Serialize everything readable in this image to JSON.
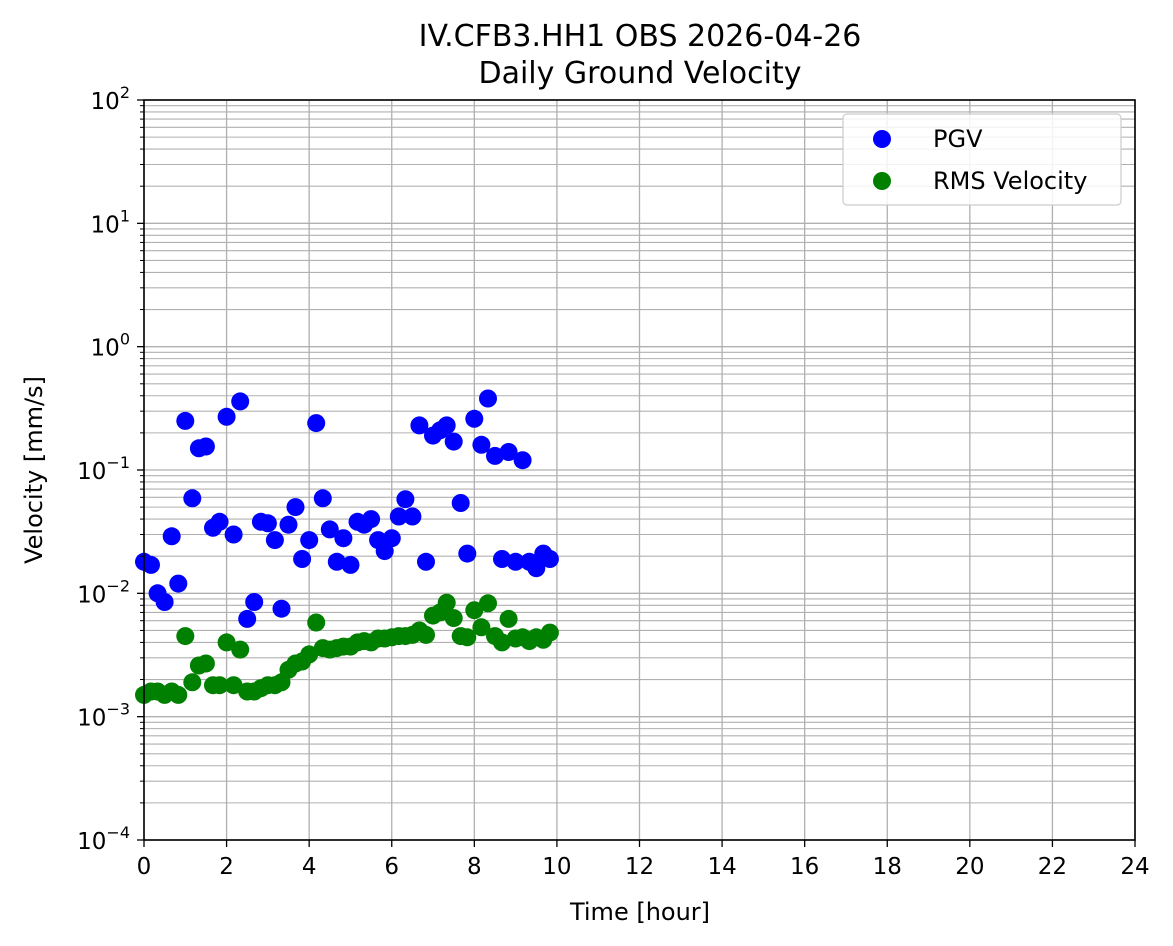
{
  "chart_data": {
    "type": "scatter",
    "title": "IV.CFB3.HH1 OBS 2026-04-26",
    "subtitle": "Daily Ground Velocity",
    "xlabel": "Time [hour]",
    "ylabel": "Velocity [mm/s]",
    "xlim": [
      0,
      24
    ],
    "ylim": [
      0.0001,
      100
    ],
    "yscale": "log",
    "x_ticks": [
      0,
      2,
      4,
      6,
      8,
      10,
      12,
      14,
      16,
      18,
      20,
      22,
      24
    ],
    "x_tick_labels": [
      "0",
      "2",
      "4",
      "6",
      "8",
      "10",
      "12",
      "14",
      "16",
      "18",
      "20",
      "22",
      "24"
    ],
    "y_ticks": [
      {
        "value": 0.0001,
        "base": "10",
        "exp": "−4"
      },
      {
        "value": 0.001,
        "base": "10",
        "exp": "−3"
      },
      {
        "value": 0.01,
        "base": "10",
        "exp": "−2"
      },
      {
        "value": 0.1,
        "base": "10",
        "exp": "−1"
      },
      {
        "value": 1,
        "base": "10",
        "exp": "0"
      },
      {
        "value": 10,
        "base": "10",
        "exp": "1"
      },
      {
        "value": 100,
        "base": "10",
        "exp": "2"
      }
    ],
    "grid": true,
    "legend_position": "top-right",
    "series": [
      {
        "name": "PGV",
        "color": "#0000ff",
        "points": [
          [
            0.0,
            0.018
          ],
          [
            0.17,
            0.017
          ],
          [
            0.33,
            0.01
          ],
          [
            0.5,
            0.0085
          ],
          [
            0.67,
            0.029
          ],
          [
            0.83,
            0.012
          ],
          [
            1.0,
            0.25
          ],
          [
            1.17,
            0.059
          ],
          [
            1.33,
            0.15
          ],
          [
            1.5,
            0.155
          ],
          [
            1.67,
            0.034
          ],
          [
            1.83,
            0.038
          ],
          [
            2.0,
            0.27
          ],
          [
            2.17,
            0.03
          ],
          [
            2.33,
            0.36
          ],
          [
            2.5,
            0.0062
          ],
          [
            2.67,
            0.0085
          ],
          [
            2.83,
            0.038
          ],
          [
            3.0,
            0.037
          ],
          [
            3.17,
            0.027
          ],
          [
            3.33,
            0.0075
          ],
          [
            3.5,
            0.036
          ],
          [
            3.67,
            0.05
          ],
          [
            3.83,
            0.019
          ],
          [
            4.0,
            0.027
          ],
          [
            4.17,
            0.24
          ],
          [
            4.33,
            0.059
          ],
          [
            4.5,
            0.033
          ],
          [
            4.67,
            0.018
          ],
          [
            4.83,
            0.028
          ],
          [
            5.0,
            0.017
          ],
          [
            5.17,
            0.038
          ],
          [
            5.33,
            0.036
          ],
          [
            5.5,
            0.04
          ],
          [
            5.67,
            0.027
          ],
          [
            5.83,
            0.022
          ],
          [
            6.0,
            0.028
          ],
          [
            6.17,
            0.042
          ],
          [
            6.33,
            0.058
          ],
          [
            6.5,
            0.042
          ],
          [
            6.67,
            0.23
          ],
          [
            6.83,
            0.018
          ],
          [
            7.0,
            0.19
          ],
          [
            7.17,
            0.21
          ],
          [
            7.33,
            0.23
          ],
          [
            7.5,
            0.17
          ],
          [
            7.67,
            0.054
          ],
          [
            7.83,
            0.021
          ],
          [
            8.0,
            0.26
          ],
          [
            8.17,
            0.16
          ],
          [
            8.33,
            0.38
          ],
          [
            8.5,
            0.13
          ],
          [
            8.67,
            0.019
          ],
          [
            8.83,
            0.14
          ],
          [
            9.0,
            0.018
          ],
          [
            9.17,
            0.12
          ],
          [
            9.33,
            0.018
          ],
          [
            9.5,
            0.016
          ],
          [
            9.67,
            0.021
          ],
          [
            9.83,
            0.019
          ]
        ]
      },
      {
        "name": "RMS Velocity",
        "color": "#008000",
        "points": [
          [
            0.0,
            0.0015
          ],
          [
            0.17,
            0.0016
          ],
          [
            0.33,
            0.0016
          ],
          [
            0.5,
            0.0015
          ],
          [
            0.67,
            0.0016
          ],
          [
            0.83,
            0.0015
          ],
          [
            1.0,
            0.0045
          ],
          [
            1.17,
            0.0019
          ],
          [
            1.33,
            0.0026
          ],
          [
            1.5,
            0.0027
          ],
          [
            1.67,
            0.0018
          ],
          [
            1.83,
            0.0018
          ],
          [
            2.0,
            0.004
          ],
          [
            2.17,
            0.0018
          ],
          [
            2.33,
            0.0035
          ],
          [
            2.5,
            0.0016
          ],
          [
            2.67,
            0.0016
          ],
          [
            2.83,
            0.0017
          ],
          [
            3.0,
            0.0018
          ],
          [
            3.17,
            0.0018
          ],
          [
            3.33,
            0.0019
          ],
          [
            3.5,
            0.0024
          ],
          [
            3.67,
            0.0027
          ],
          [
            3.83,
            0.0028
          ],
          [
            4.0,
            0.0032
          ],
          [
            4.17,
            0.0058
          ],
          [
            4.33,
            0.0036
          ],
          [
            4.5,
            0.0035
          ],
          [
            4.67,
            0.0036
          ],
          [
            4.83,
            0.0037
          ],
          [
            5.0,
            0.0037
          ],
          [
            5.17,
            0.004
          ],
          [
            5.33,
            0.0041
          ],
          [
            5.5,
            0.004
          ],
          [
            5.67,
            0.0043
          ],
          [
            5.83,
            0.0043
          ],
          [
            6.0,
            0.0044
          ],
          [
            6.17,
            0.0045
          ],
          [
            6.33,
            0.0045
          ],
          [
            6.5,
            0.0046
          ],
          [
            6.67,
            0.005
          ],
          [
            6.83,
            0.0046
          ],
          [
            7.0,
            0.0066
          ],
          [
            7.17,
            0.007
          ],
          [
            7.33,
            0.0084
          ],
          [
            7.5,
            0.0063
          ],
          [
            7.67,
            0.0045
          ],
          [
            7.83,
            0.0044
          ],
          [
            8.0,
            0.0073
          ],
          [
            8.17,
            0.0053
          ],
          [
            8.33,
            0.0083
          ],
          [
            8.5,
            0.0045
          ],
          [
            8.67,
            0.004
          ],
          [
            8.83,
            0.0062
          ],
          [
            9.0,
            0.0043
          ],
          [
            9.17,
            0.0044
          ],
          [
            9.33,
            0.0041
          ],
          [
            9.5,
            0.0044
          ],
          [
            9.67,
            0.0042
          ],
          [
            9.83,
            0.0048
          ]
        ]
      }
    ]
  }
}
